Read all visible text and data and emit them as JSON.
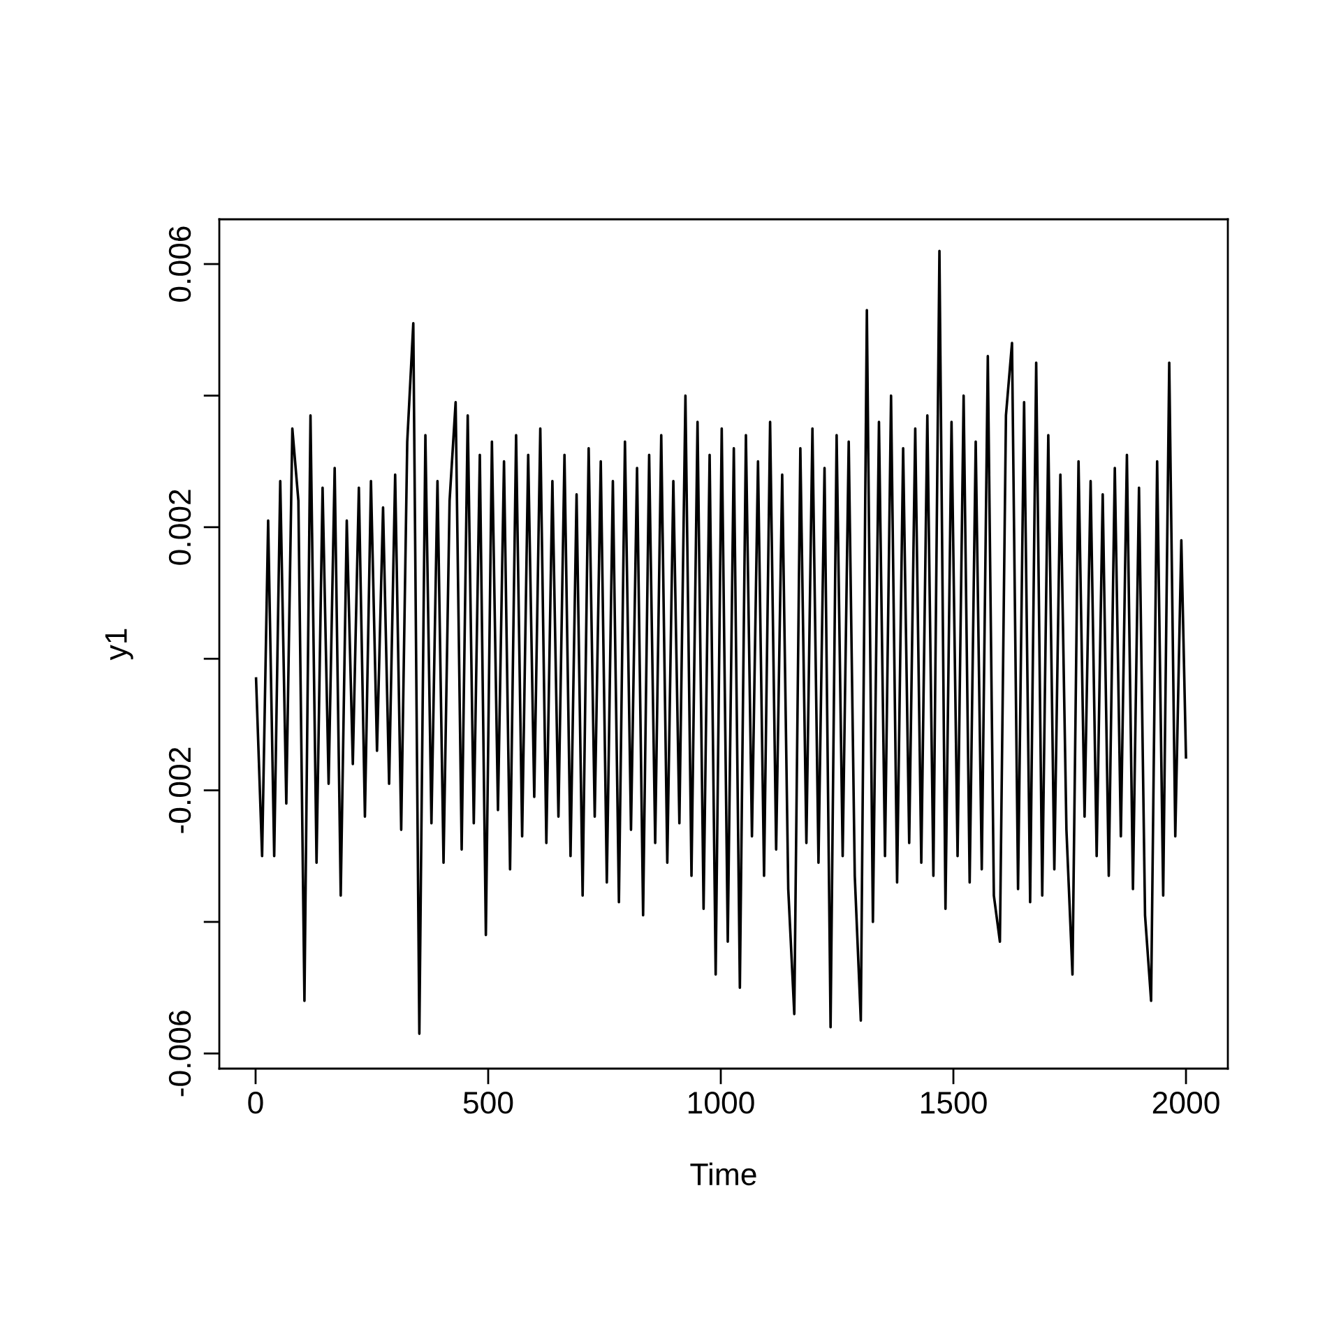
{
  "chart_data": {
    "type": "line",
    "xlabel": "Time",
    "ylabel": "y1",
    "color": "#000000",
    "x": [
      1,
      14,
      27,
      40,
      53,
      66,
      79,
      92,
      105,
      118,
      131,
      144,
      157,
      170,
      183,
      196,
      209,
      222,
      235,
      248,
      261,
      274,
      287,
      300,
      313,
      326,
      339,
      352,
      365,
      378,
      391,
      404,
      417,
      430,
      443,
      456,
      469,
      482,
      495,
      508,
      521,
      534,
      547,
      560,
      573,
      586,
      599,
      612,
      625,
      638,
      651,
      664,
      677,
      690,
      703,
      716,
      729,
      742,
      755,
      768,
      781,
      794,
      807,
      820,
      833,
      846,
      859,
      872,
      885,
      898,
      911,
      924,
      937,
      950,
      963,
      976,
      989,
      1002,
      1015,
      1028,
      1041,
      1054,
      1067,
      1080,
      1093,
      1106,
      1119,
      1132,
      1145,
      1158,
      1171,
      1184,
      1197,
      1210,
      1223,
      1236,
      1249,
      1262,
      1275,
      1288,
      1301,
      1314,
      1327,
      1340,
      1353,
      1366,
      1379,
      1392,
      1405,
      1418,
      1431,
      1444,
      1457,
      1470,
      1483,
      1496,
      1509,
      1522,
      1535,
      1548,
      1561,
      1574,
      1587,
      1600,
      1613,
      1626,
      1639,
      1652,
      1665,
      1678,
      1691,
      1704,
      1717,
      1730,
      1743,
      1756,
      1769,
      1782,
      1795,
      1808,
      1821,
      1834,
      1847,
      1860,
      1873,
      1886,
      1899,
      1912,
      1925,
      1938,
      1951,
      1964,
      1977,
      1990,
      2000
    ],
    "values": [
      -0.0003,
      -0.003,
      0.0021,
      -0.003,
      0.0027,
      -0.0022,
      0.0035,
      0.0024,
      -0.0052,
      0.0037,
      -0.0031,
      0.0026,
      -0.0019,
      0.0029,
      -0.0036,
      0.0021,
      -0.0016,
      0.0026,
      -0.0024,
      0.0027,
      -0.0014,
      0.0023,
      -0.0019,
      0.0028,
      -0.0026,
      0.0033,
      0.0051,
      -0.0057,
      0.0034,
      -0.0025,
      0.0027,
      -0.0031,
      0.0024,
      0.0039,
      -0.0029,
      0.0037,
      -0.0025,
      0.0031,
      -0.0042,
      0.0033,
      -0.0023,
      0.003,
      -0.0032,
      0.0034,
      -0.0027,
      0.0031,
      -0.0021,
      0.0035,
      -0.0028,
      0.0027,
      -0.0024,
      0.0031,
      -0.003,
      0.0025,
      -0.0036,
      0.0032,
      -0.0024,
      0.003,
      -0.0034,
      0.0027,
      -0.0037,
      0.0033,
      -0.0026,
      0.0029,
      -0.0039,
      0.0031,
      -0.0028,
      0.0034,
      -0.0031,
      0.0027,
      -0.0025,
      0.004,
      -0.0033,
      0.0036,
      -0.0038,
      0.0031,
      -0.0048,
      0.0035,
      -0.0043,
      0.0032,
      -0.005,
      0.0034,
      -0.0027,
      0.003,
      -0.0033,
      0.0036,
      -0.0029,
      0.0028,
      -0.0035,
      -0.0054,
      0.0032,
      -0.0028,
      0.0035,
      -0.0031,
      0.0029,
      -0.0056,
      0.0034,
      -0.003,
      0.0033,
      -0.0033,
      -0.0055,
      0.0053,
      -0.004,
      0.0036,
      -0.003,
      0.004,
      -0.0034,
      0.0032,
      -0.0028,
      0.0035,
      -0.0031,
      0.0037,
      -0.0033,
      0.0062,
      -0.0038,
      0.0036,
      -0.003,
      0.004,
      -0.0034,
      0.0033,
      -0.0032,
      0.0046,
      -0.0036,
      -0.0043,
      0.0037,
      0.0048,
      -0.0035,
      0.0039,
      -0.0037,
      0.0045,
      -0.0036,
      0.0034,
      -0.0032,
      0.0028,
      -0.0026,
      -0.0048,
      0.003,
      -0.0024,
      0.0027,
      -0.003,
      0.0025,
      -0.0033,
      0.0029,
      -0.0027,
      0.0031,
      -0.0035,
      0.0026,
      -0.0039,
      -0.0052,
      0.003,
      -0.0036,
      0.0045,
      -0.0027,
      0.0018,
      -0.0015
    ],
    "xlim": [
      -78,
      2090
    ],
    "ylim": [
      -0.00623,
      0.00668
    ],
    "xticks": [
      0,
      500,
      1000,
      1500,
      2000
    ],
    "yticks": [
      {
        "value": -0.006,
        "label": "-0.006"
      },
      {
        "value": -0.004,
        "label": null
      },
      {
        "value": -0.002,
        "label": "-0.002"
      },
      {
        "value": 0,
        "label": null
      },
      {
        "value": 0.002,
        "label": "0.002"
      },
      {
        "value": 0.004,
        "label": null
      },
      {
        "value": 0.006,
        "label": "0.006"
      }
    ]
  }
}
